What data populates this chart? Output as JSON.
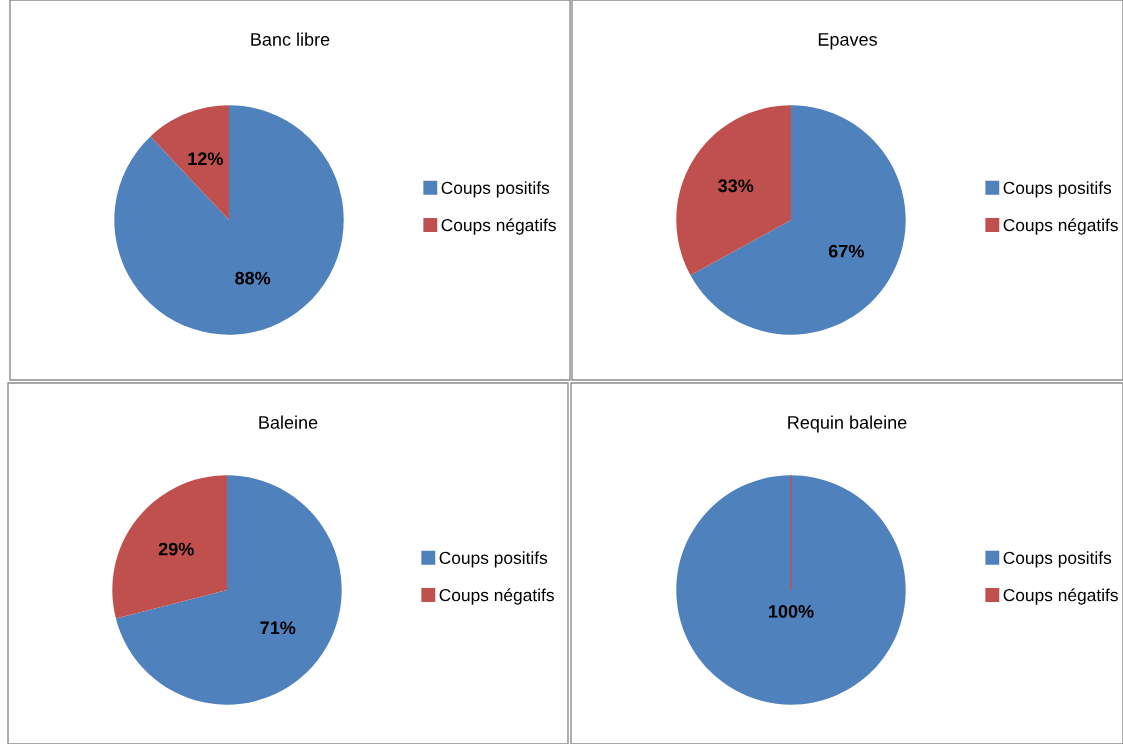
{
  "chart_data": [
    {
      "type": "pie",
      "title": "Banc libre",
      "categories": [
        "Coups positifs",
        "Coups négatifs"
      ],
      "values": [
        88,
        12
      ],
      "colors": [
        "#4f81bd",
        "#c0504d"
      ],
      "value_labels": [
        "88%",
        "12%"
      ],
      "legend": "right"
    },
    {
      "type": "pie",
      "title": "Epaves",
      "categories": [
        "Coups positifs",
        "Coups négatifs"
      ],
      "values": [
        67,
        33
      ],
      "colors": [
        "#4f81bd",
        "#c0504d"
      ],
      "value_labels": [
        "67%",
        "33%"
      ],
      "legend": "right"
    },
    {
      "type": "pie",
      "title": "Baleine",
      "categories": [
        "Coups positifs",
        "Coups négatifs"
      ],
      "values": [
        71,
        29
      ],
      "colors": [
        "#4f81bd",
        "#c0504d"
      ],
      "value_labels": [
        "71%",
        "29%"
      ],
      "legend": "right"
    },
    {
      "type": "pie",
      "title": "Requin baleine",
      "categories": [
        "Coups positifs",
        "Coups négatifs"
      ],
      "values": [
        100,
        0
      ],
      "colors": [
        "#4f81bd",
        "#c0504d"
      ],
      "value_labels": [
        "100%",
        null
      ],
      "legend": "right"
    }
  ]
}
